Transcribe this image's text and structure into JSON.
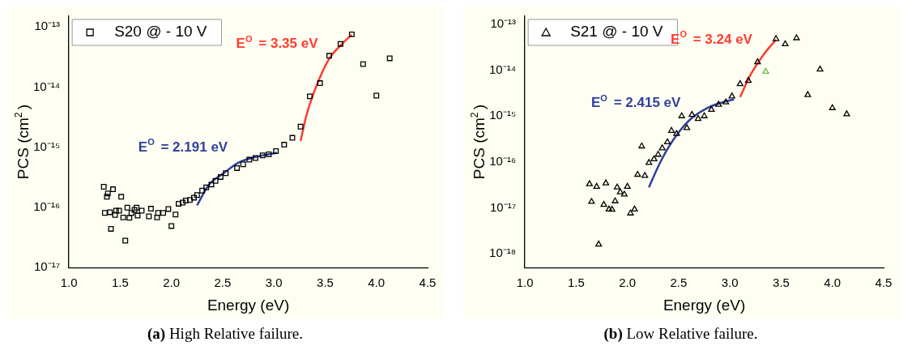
{
  "chart_data": [
    {
      "type": "scatter",
      "title": "(a) High Relative failure.",
      "xlabel": "Energy (eV)",
      "ylabel": "PCS (cm$^{2}$)",
      "log": "y",
      "xlim": [
        1,
        4.5
      ],
      "ylim": [
        1e-17,
        1.5e-13
      ],
      "xticks": [
        {
          "value": 1,
          "label": "1.0"
        },
        {
          "value": 1.5,
          "label": "1.5"
        },
        {
          "value": 2,
          "label": "2.0"
        },
        {
          "value": 2.5,
          "label": "2.5"
        },
        {
          "value": 3,
          "label": "3.0"
        },
        {
          "value": 3.5,
          "label": "3.5"
        },
        {
          "value": 4,
          "label": "4.0"
        },
        {
          "value": 4.5,
          "label": "4.5"
        }
      ],
      "yticks": [
        {
          "value": 1e-17,
          "label": "10⁻¹⁷"
        },
        {
          "value": 1e-16,
          "label": "10⁻¹⁶"
        },
        {
          "value": 1e-15,
          "label": "10⁻¹⁵"
        },
        {
          "value": 1e-14,
          "label": "10⁻¹⁴"
        },
        {
          "value": 1e-13,
          "label": "10⁻¹³"
        }
      ],
      "marker": "square",
      "legend": "top left",
      "grid": false,
      "annotations": [
        "E$^{O}$ = 2.191 eV",
        "E$^{O}$ = 3.35 eV"
      ],
      "series": [
        {
          "name": "S20 @ - 10 V",
          "color": "#000000",
          "x": [
            1.34,
            1.35,
            1.37,
            1.38,
            1.4,
            1.41,
            1.43,
            1.45,
            1.46,
            1.49,
            1.51,
            1.53,
            1.55,
            1.57,
            1.59,
            1.61,
            1.64,
            1.66,
            1.67,
            1.71,
            1.78,
            1.8,
            1.86,
            1.87,
            1.92,
            1.97,
            2.0,
            2.04,
            2.07,
            2.11,
            2.14,
            2.18,
            2.22,
            2.25,
            2.3,
            2.34,
            2.39,
            2.43,
            2.48,
            2.53,
            2.64,
            2.7,
            2.76,
            2.82,
            2.89,
            2.95,
            3.02,
            3.1,
            3.18,
            3.26,
            3.35,
            3.45,
            3.54,
            3.65,
            3.76,
            3.87,
            4.0,
            4.13
          ],
          "values": [
            2.2e-16,
            8.1e-17,
            1.5e-16,
            1.7e-16,
            8.3e-17,
            4.4e-17,
            2e-16,
            7.5e-17,
            8.8e-17,
            8.8e-17,
            1.5e-16,
            6.8e-17,
            2.8e-17,
            9.9e-17,
            6.7e-17,
            8.1e-17,
            9.1e-17,
            9.9e-17,
            7.3e-17,
            8.8e-17,
            7.1e-17,
            9.5e-17,
            6.8e-17,
            8.1e-17,
            8.1e-17,
            9.4e-17,
            4.9e-17,
            7.6e-17,
            1.15e-16,
            1.2e-16,
            1.3e-16,
            1.33e-16,
            1.45e-16,
            1.6e-16,
            1.9e-16,
            2.15e-16,
            2.4e-16,
            2.75e-16,
            3.2e-16,
            3.7e-16,
            4.5e-16,
            5.2e-16,
            6.2e-16,
            6.6e-16,
            7.3e-16,
            7.6e-16,
            8.6e-16,
            1.1e-15,
            1.43e-15,
            2.2e-15,
            7e-15,
            1.16e-14,
            3.3e-14,
            5.2e-14,
            7.5e-14,
            2.4e-14,
            7.2e-15,
            3e-14
          ]
        },
        {
          "type": "line",
          "marker": "none",
          "color": "#2e3f9c",
          "x": [
            2.25,
            2.36,
            2.51,
            2.66,
            2.84,
            3.03
          ],
          "values": [
            1.08e-16,
            2.3e-16,
            3.7e-16,
            5.6e-16,
            7e-16,
            8.1e-16
          ]
        },
        {
          "type": "line",
          "marker": "none",
          "color": "#ff3b30",
          "x": [
            3.26,
            3.32,
            3.41,
            3.54,
            3.66,
            3.76
          ],
          "values": [
            1.27e-15,
            3.5e-15,
            9.9e-15,
            2.95e-14,
            5.1e-14,
            7.4e-14
          ]
        }
      ]
    },
    {
      "type": "scatter",
      "title": "(b) Low Relative failure.",
      "xlabel": "Energy (eV)",
      "ylabel": "PCS (cm$^{2}$)",
      "log": "y",
      "xlim": [
        1,
        4.5
      ],
      "ylim": [
        5e-19,
        1.5e-13
      ],
      "xticks": [
        {
          "value": 1,
          "label": "1.0"
        },
        {
          "value": 1.5,
          "label": "1.5"
        },
        {
          "value": 2,
          "label": "2.0"
        },
        {
          "value": 2.5,
          "label": "2.5"
        },
        {
          "value": 3,
          "label": "3.0"
        },
        {
          "value": 3.5,
          "label": "3.5"
        },
        {
          "value": 4,
          "label": "4.0"
        },
        {
          "value": 4.5,
          "label": "4.5"
        }
      ],
      "yticks": [
        {
          "value": 1e-18,
          "label": "10⁻¹⁸"
        },
        {
          "value": 1e-17,
          "label": "10⁻¹⁷"
        },
        {
          "value": 1e-16,
          "label": "10⁻¹⁶"
        },
        {
          "value": 1e-15,
          "label": "10⁻¹⁵"
        },
        {
          "value": 1e-14,
          "label": "10⁻¹⁴"
        },
        {
          "value": 1e-13,
          "label": "10⁻¹³"
        }
      ],
      "marker": "triangle",
      "legend": "top left",
      "grid": false,
      "annotations": [
        "E$^{O}$ = 2.415 eV",
        "E$^{O}$ = 3.24 eV"
      ],
      "series": [
        {
          "name": "S21 @ - 10 V",
          "color": "#000000",
          "x": [
            1.63,
            1.65,
            1.7,
            1.72,
            1.77,
            1.79,
            1.82,
            1.85,
            1.88,
            1.9,
            1.93,
            1.97,
            2.0,
            2.03,
            2.07,
            2.1,
            2.14,
            2.17,
            2.21,
            2.26,
            2.3,
            2.34,
            2.39,
            2.43,
            2.48,
            2.53,
            2.58,
            2.63,
            2.69,
            2.75,
            2.82,
            2.89,
            2.96,
            3.02,
            3.1,
            3.18,
            3.27,
            3.45,
            3.54,
            3.65,
            3.76,
            3.88,
            4.0,
            4.14
          ],
          "values": [
            3.3e-17,
            1.36e-17,
            2.9e-17,
            1.6e-18,
            1.17e-17,
            3.45e-17,
            9.3e-18,
            9.2e-18,
            1.4e-17,
            2.8e-17,
            2.2e-17,
            1.96e-17,
            2.9e-17,
            7.6e-18,
            9.3e-18,
            5.3e-17,
            2.2e-16,
            5e-17,
            9.6e-17,
            1.15e-16,
            1.45e-16,
            2e-16,
            2.7e-16,
            4.8e-16,
            4.1e-16,
            1e-15,
            5.5e-16,
            1.07e-15,
            8.7e-16,
            1e-15,
            1.38e-15,
            1.78e-15,
            2e-15,
            2.7e-15,
            5e-15,
            5.9e-15,
            1.5e-14,
            4.8e-14,
            3.7e-14,
            5e-14,
            2.9e-15,
            1.04e-14,
            1.5e-15,
            1.1e-15
          ]
        },
        {
          "color": "#66bb44",
          "x": [
            3.35
          ],
          "values": [
            9.3e-15
          ]
        },
        {
          "type": "line",
          "marker": "none",
          "color": "#2e3f9c",
          "x": [
            2.21,
            2.3,
            2.39,
            2.51,
            2.63,
            2.78,
            2.93,
            3.04
          ],
          "values": [
            2.8e-17,
            7.9e-17,
            1.9e-16,
            4.7e-16,
            9.1e-16,
            1.5e-15,
            2e-15,
            2.3e-15
          ]
        },
        {
          "type": "line",
          "marker": "none",
          "color": "#ff3b30",
          "x": [
            3.1,
            3.2,
            3.33,
            3.45
          ],
          "values": [
            2.6e-15,
            7.8e-15,
            2.2e-14,
            4.6e-14
          ]
        }
      ]
    }
  ]
}
